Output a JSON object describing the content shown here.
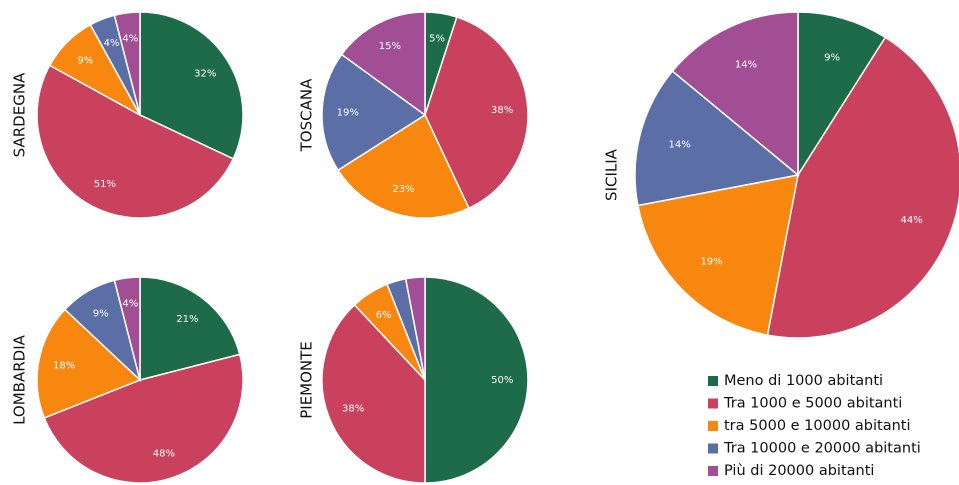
{
  "legend": {
    "categories": [
      "Meno di 1000 abitanti",
      "Tra 1000 e 5000 abitanti",
      "tra 5000 e 10000 abitanti",
      "Tra 10000 e 20000 abitanti",
      "Più di 20000 abitanti"
    ],
    "colors": [
      "#1d6b48",
      "#c9415c",
      "#f7870f",
      "#5b6ea6",
      "#a14e95"
    ]
  },
  "chart_data": [
    {
      "type": "pie",
      "title": "SARDEGNA",
      "values": [
        32,
        51,
        9,
        4,
        4
      ],
      "value_labels": [
        "32%",
        "51%",
        "9%",
        "4%",
        "4%"
      ]
    },
    {
      "type": "pie",
      "title": "TOSCANA",
      "values": [
        5,
        38,
        23,
        19,
        15
      ],
      "value_labels": [
        "5%",
        "38%",
        "23%",
        "19%",
        "15%"
      ]
    },
    {
      "type": "pie",
      "title": "LOMBARDIA",
      "values": [
        21,
        48,
        18,
        9,
        4
      ],
      "value_labels": [
        "21%",
        "48%",
        "18%",
        "9%",
        "4%"
      ]
    },
    {
      "type": "pie",
      "title": "PIEMONTE",
      "values": [
        50,
        38,
        6,
        3,
        3
      ],
      "value_labels": [
        "50%",
        "38%",
        "6%",
        null,
        null
      ]
    },
    {
      "type": "pie",
      "title": "SICILIA",
      "values": [
        9,
        44,
        19,
        14,
        14
      ],
      "value_labels": [
        "9%",
        "44%",
        "19%",
        "14%",
        "14%"
      ]
    }
  ]
}
